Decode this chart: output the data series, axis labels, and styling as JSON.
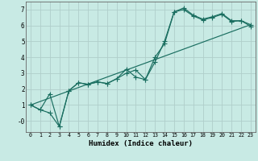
{
  "title": "",
  "xlabel": "Humidex (Indice chaleur)",
  "xlim": [
    -0.5,
    23.5
  ],
  "ylim": [
    -0.7,
    7.5
  ],
  "xticks": [
    0,
    1,
    2,
    3,
    4,
    5,
    6,
    7,
    8,
    9,
    10,
    11,
    12,
    13,
    14,
    15,
    16,
    17,
    18,
    19,
    20,
    21,
    22,
    23
  ],
  "yticks": [
    0,
    1,
    2,
    3,
    4,
    5,
    6,
    7
  ],
  "ytick_labels": [
    "-0",
    "1",
    "2",
    "3",
    "4",
    "5",
    "6",
    "7"
  ],
  "bg_color": "#c8eae4",
  "grid_color": "#b0ceca",
  "line_color": "#1a6e60",
  "line1_x": [
    0,
    1,
    2,
    3,
    4,
    5,
    6,
    7,
    8,
    9,
    10,
    11,
    12,
    13,
    14,
    15,
    16,
    17,
    18,
    19,
    20,
    21,
    22,
    23
  ],
  "line1_y": [
    1.0,
    0.7,
    0.5,
    -0.35,
    1.9,
    2.4,
    2.3,
    2.45,
    2.35,
    2.65,
    3.25,
    2.75,
    2.6,
    3.7,
    5.0,
    6.85,
    7.1,
    6.65,
    6.4,
    6.55,
    6.75,
    6.3,
    6.3,
    6.05
  ],
  "line2_x": [
    0,
    1,
    2,
    3,
    4,
    5,
    6,
    7,
    8,
    9,
    10,
    11,
    12,
    13,
    14,
    15,
    16,
    17,
    18,
    19,
    20,
    21,
    22,
    23
  ],
  "line2_y": [
    1.0,
    0.7,
    1.7,
    -0.35,
    1.9,
    2.4,
    2.3,
    2.45,
    2.35,
    2.65,
    3.0,
    3.2,
    2.6,
    4.0,
    4.85,
    6.85,
    7.0,
    6.6,
    6.35,
    6.5,
    6.7,
    6.25,
    6.3,
    5.95
  ],
  "line3_x": [
    0,
    23
  ],
  "line3_y": [
    1.0,
    6.05
  ]
}
